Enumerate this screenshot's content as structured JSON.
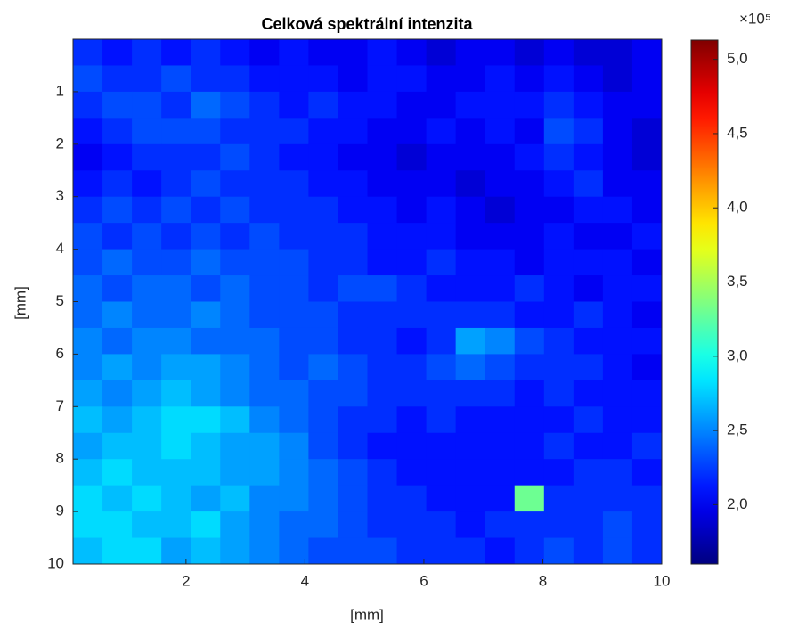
{
  "chart_data": {
    "type": "heatmap",
    "title": "Celková spektrální intenzita",
    "xlabel": "[mm]",
    "ylabel": "[mm]",
    "xlim": [
      0.1,
      10
    ],
    "ylim": [
      0,
      10
    ],
    "y_reversed": true,
    "xticks": [
      2,
      4,
      6,
      8,
      10
    ],
    "yticks": [
      1,
      2,
      3,
      4,
      5,
      6,
      7,
      8,
      9,
      10
    ],
    "colormap": "jet",
    "colorbar": {
      "clim": [
        1.6,
        5.13
      ],
      "exponent_label": "×10⁵",
      "ticks": [
        {
          "value": 2.0,
          "label": "2,0"
        },
        {
          "value": 2.5,
          "label": "2,5"
        },
        {
          "value": 3.0,
          "label": "3,0"
        },
        {
          "value": 3.5,
          "label": "3,5"
        },
        {
          "value": 4.0,
          "label": "4,0"
        },
        {
          "value": 4.5,
          "label": "4,5"
        },
        {
          "value": 5.0,
          "label": "5,0"
        }
      ]
    },
    "values": [
      [
        2.2,
        2.1,
        2.2,
        2.1,
        2.2,
        2.1,
        2.0,
        2.1,
        2.0,
        2.0,
        2.1,
        2.0,
        1.9,
        2.0,
        2.0,
        1.9,
        2.0,
        1.9,
        1.9,
        2.0
      ],
      [
        2.3,
        2.2,
        2.2,
        2.3,
        2.2,
        2.2,
        2.1,
        2.1,
        2.1,
        2.0,
        2.1,
        2.1,
        2.0,
        2.0,
        2.1,
        2.0,
        2.1,
        2.0,
        1.9,
        2.0
      ],
      [
        2.2,
        2.3,
        2.3,
        2.2,
        2.4,
        2.3,
        2.2,
        2.1,
        2.2,
        2.1,
        2.1,
        2.0,
        2.0,
        2.1,
        2.1,
        2.1,
        2.2,
        2.1,
        2.0,
        2.0
      ],
      [
        2.1,
        2.2,
        2.3,
        2.3,
        2.3,
        2.2,
        2.2,
        2.2,
        2.1,
        2.1,
        2.0,
        2.0,
        2.1,
        2.0,
        2.1,
        2.0,
        2.3,
        2.2,
        2.0,
        1.9
      ],
      [
        2.0,
        2.1,
        2.2,
        2.2,
        2.2,
        2.3,
        2.2,
        2.1,
        2.1,
        2.0,
        2.0,
        1.9,
        2.0,
        2.0,
        2.0,
        2.1,
        2.2,
        2.1,
        2.0,
        1.9
      ],
      [
        2.1,
        2.2,
        2.1,
        2.2,
        2.3,
        2.2,
        2.2,
        2.2,
        2.1,
        2.1,
        2.0,
        2.0,
        2.0,
        1.9,
        2.0,
        2.0,
        2.1,
        2.2,
        2.0,
        2.0
      ],
      [
        2.2,
        2.3,
        2.2,
        2.3,
        2.2,
        2.3,
        2.2,
        2.2,
        2.2,
        2.1,
        2.1,
        2.0,
        2.1,
        2.0,
        1.9,
        2.0,
        2.0,
        2.1,
        2.1,
        2.0
      ],
      [
        2.3,
        2.2,
        2.3,
        2.2,
        2.3,
        2.2,
        2.3,
        2.2,
        2.2,
        2.2,
        2.1,
        2.1,
        2.1,
        2.0,
        2.0,
        2.0,
        2.1,
        2.0,
        2.0,
        2.1
      ],
      [
        2.3,
        2.4,
        2.3,
        2.3,
        2.4,
        2.3,
        2.3,
        2.3,
        2.2,
        2.2,
        2.1,
        2.1,
        2.2,
        2.1,
        2.1,
        2.0,
        2.1,
        2.1,
        2.1,
        2.0
      ],
      [
        2.4,
        2.3,
        2.4,
        2.4,
        2.3,
        2.4,
        2.3,
        2.3,
        2.2,
        2.3,
        2.3,
        2.2,
        2.1,
        2.1,
        2.1,
        2.2,
        2.1,
        2.0,
        2.1,
        2.1
      ],
      [
        2.4,
        2.5,
        2.4,
        2.4,
        2.5,
        2.4,
        2.3,
        2.3,
        2.3,
        2.2,
        2.2,
        2.2,
        2.2,
        2.2,
        2.2,
        2.1,
        2.1,
        2.2,
        2.1,
        2.0
      ],
      [
        2.5,
        2.4,
        2.5,
        2.5,
        2.4,
        2.4,
        2.4,
        2.3,
        2.3,
        2.2,
        2.2,
        2.1,
        2.2,
        2.6,
        2.5,
        2.3,
        2.2,
        2.1,
        2.1,
        2.1
      ],
      [
        2.5,
        2.6,
        2.5,
        2.6,
        2.6,
        2.5,
        2.4,
        2.3,
        2.4,
        2.3,
        2.2,
        2.2,
        2.3,
        2.4,
        2.3,
        2.2,
        2.2,
        2.2,
        2.1,
        2.0
      ],
      [
        2.6,
        2.5,
        2.6,
        2.7,
        2.6,
        2.5,
        2.4,
        2.4,
        2.3,
        2.3,
        2.2,
        2.2,
        2.2,
        2.2,
        2.2,
        2.1,
        2.2,
        2.1,
        2.1,
        2.1
      ],
      [
        2.7,
        2.6,
        2.7,
        2.8,
        2.8,
        2.7,
        2.5,
        2.4,
        2.3,
        2.2,
        2.2,
        2.1,
        2.2,
        2.1,
        2.1,
        2.1,
        2.1,
        2.2,
        2.1,
        2.1
      ],
      [
        2.6,
        2.7,
        2.7,
        2.8,
        2.7,
        2.6,
        2.6,
        2.5,
        2.3,
        2.2,
        2.1,
        2.1,
        2.1,
        2.1,
        2.1,
        2.1,
        2.2,
        2.1,
        2.1,
        2.2
      ],
      [
        2.7,
        2.8,
        2.7,
        2.7,
        2.7,
        2.6,
        2.6,
        2.5,
        2.4,
        2.3,
        2.2,
        2.1,
        2.1,
        2.1,
        2.1,
        2.1,
        2.1,
        2.2,
        2.2,
        2.1
      ],
      [
        2.8,
        2.7,
        2.8,
        2.7,
        2.6,
        2.7,
        2.5,
        2.5,
        2.4,
        2.3,
        2.2,
        2.2,
        2.1,
        2.1,
        2.1,
        3.3,
        2.2,
        2.2,
        2.2,
        2.2
      ],
      [
        2.8,
        2.8,
        2.7,
        2.7,
        2.8,
        2.6,
        2.5,
        2.4,
        2.4,
        2.3,
        2.2,
        2.2,
        2.2,
        2.1,
        2.2,
        2.2,
        2.2,
        2.2,
        2.3,
        2.2
      ],
      [
        2.7,
        2.8,
        2.8,
        2.6,
        2.7,
        2.6,
        2.5,
        2.4,
        2.3,
        2.3,
        2.3,
        2.2,
        2.2,
        2.2,
        2.1,
        2.2,
        2.3,
        2.2,
        2.3,
        2.2
      ]
    ]
  }
}
